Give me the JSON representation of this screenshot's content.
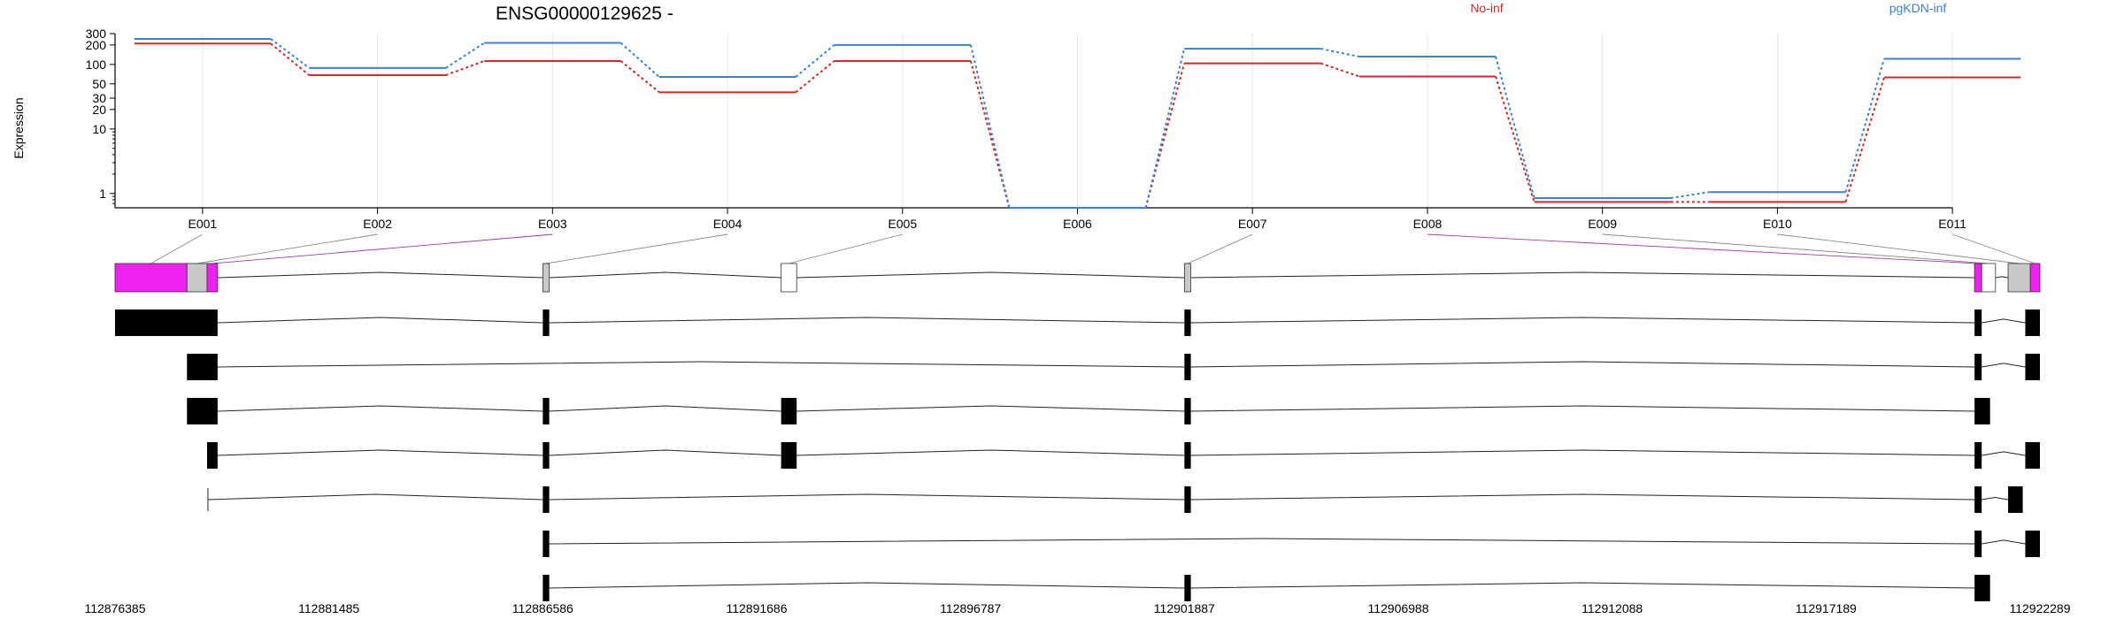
{
  "chart_data": {
    "type": "line",
    "title": "ENSG00000129625 -",
    "ylabel": "Expression",
    "y_scale": "log",
    "ylim": [
      0.6,
      300
    ],
    "y_ticks": [
      1,
      10,
      20,
      30,
      50,
      100,
      200,
      300
    ],
    "y_tick_labels": [
      "1",
      "10",
      "20",
      "30",
      "50",
      "100",
      "200",
      "300"
    ],
    "categories": [
      "E001",
      "E002",
      "E003",
      "E004",
      "E005",
      "E006",
      "E007",
      "E008",
      "E009",
      "E010",
      "E011"
    ],
    "grid": "vertical",
    "legend_position": "top",
    "series": [
      {
        "name": "No-inf",
        "color": "#cc2a2a",
        "values": [
          210,
          68,
          113,
          37,
          113,
          0.6,
          104,
          65,
          0.74,
          0.74,
          63
        ]
      },
      {
        "name": "pgKDN-inf",
        "color": "#3f80c6",
        "values": [
          248,
          88,
          215,
          64,
          200,
          0.6,
          175,
          132,
          0.85,
          1.05,
          122
        ]
      }
    ],
    "genomic_axis": {
      "range": [
        112876385,
        112922289
      ],
      "ticks": [
        "112876385",
        "112881485",
        "112886586",
        "112891686",
        "112896787",
        "112901887",
        "112906988",
        "112912088",
        "112917189",
        "112922289"
      ]
    },
    "exon_map": [
      {
        "exon": "E001",
        "start": 112876385,
        "end": 112878100,
        "fill": "#ee22ee"
      },
      {
        "exon": "E002",
        "start": 112878100,
        "end": 112878580,
        "fill": "#c8c8c8"
      },
      {
        "exon": "E003",
        "start": 112878580,
        "end": 112878830,
        "fill": "#ee22ee"
      },
      {
        "exon": "E004",
        "start": 112886586,
        "end": 112886740,
        "fill": "#c8c8c8"
      },
      {
        "exon": "E005",
        "start": 112892270,
        "end": 112892640,
        "fill": "#ffffff"
      },
      {
        "exon": "E007",
        "start": 112901887,
        "end": 112902040,
        "fill": "#c8c8c8"
      },
      {
        "exon": "E008",
        "start": 112920730,
        "end": 112920900,
        "fill": "#ee22ee"
      },
      {
        "exon": "E009",
        "start": 112920900,
        "end": 112921230,
        "fill": "#ffffff"
      },
      {
        "exon": "E010",
        "start": 112921530,
        "end": 112922060,
        "fill": "#c8c8c8"
      },
      {
        "exon": "E011",
        "start": 112922060,
        "end": 112922289,
        "fill": "#ee22ee"
      }
    ],
    "transcripts": [
      {
        "exons": [
          [
            112876385,
            112878830
          ],
          [
            112886586,
            112886740
          ],
          [
            112901887,
            112902040
          ],
          [
            112920730,
            112920900
          ],
          [
            112921940,
            112922289
          ]
        ]
      },
      {
        "exons": [
          [
            112878100,
            112878830
          ],
          [
            112901887,
            112902040
          ],
          [
            112920730,
            112920900
          ],
          [
            112921940,
            112922289
          ]
        ]
      },
      {
        "exons": [
          [
            112878100,
            112878830
          ],
          [
            112886586,
            112886740
          ],
          [
            112892270,
            112892640
          ],
          [
            112901887,
            112902040
          ],
          [
            112920730,
            112921100
          ]
        ]
      },
      {
        "exons": [
          [
            112878580,
            112878830
          ],
          [
            112886586,
            112886740
          ],
          [
            112892270,
            112892640
          ],
          [
            112901887,
            112902040
          ],
          [
            112920730,
            112920900
          ],
          [
            112921940,
            112922289
          ]
        ]
      },
      {
        "start_line": true,
        "exons": [
          [
            112886586,
            112886740
          ],
          [
            112901887,
            112902040
          ],
          [
            112920730,
            112920900
          ],
          [
            112921530,
            112921880
          ]
        ]
      },
      {
        "exons": [
          [
            112886586,
            112886740
          ],
          [
            112920730,
            112920900
          ],
          [
            112921940,
            112922289
          ]
        ]
      },
      {
        "exons": [
          [
            112886586,
            112886740
          ],
          [
            112901887,
            112902040
          ],
          [
            112920730,
            112921100
          ]
        ]
      }
    ]
  }
}
